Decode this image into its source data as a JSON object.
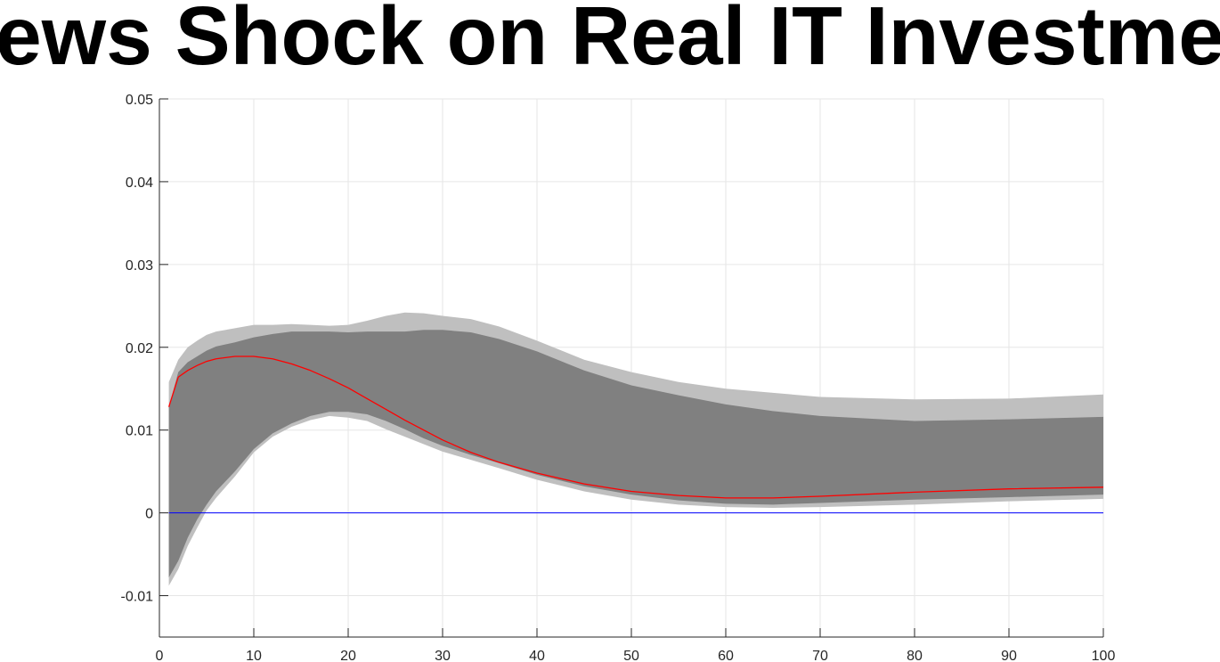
{
  "chart_data": {
    "type": "line",
    "title": "ews Shock on Real IT Investme",
    "xlabel": "",
    "ylabel": "",
    "xlim": [
      0,
      100
    ],
    "ylim": [
      -0.015,
      0.05
    ],
    "xticks": [
      0,
      10,
      20,
      30,
      40,
      50,
      60,
      70,
      80,
      90,
      100
    ],
    "xtick_labels": [
      "0",
      "10",
      "20",
      "30",
      "40",
      "50",
      "60",
      "70",
      "80",
      "90",
      "100"
    ],
    "yticks": [
      -0.01,
      0,
      0.01,
      0.02,
      0.03,
      0.04,
      0.05
    ],
    "ytick_labels": [
      "-0.01",
      "0",
      "0.01",
      "0.02",
      "0.03",
      "0.04",
      "0.05"
    ],
    "grid": true,
    "x": [
      1,
      2,
      3,
      4,
      5,
      6,
      8,
      10,
      12,
      14,
      16,
      18,
      20,
      22,
      24,
      26,
      28,
      30,
      33,
      36,
      40,
      45,
      50,
      55,
      60,
      65,
      70,
      80,
      90,
      100
    ],
    "series": [
      {
        "role": "outer_band",
        "color": "#bfbfbf",
        "upper": [
          0.0158,
          0.0185,
          0.02,
          0.0208,
          0.0215,
          0.0219,
          0.0223,
          0.0227,
          0.0227,
          0.0228,
          0.0227,
          0.0226,
          0.0227,
          0.0232,
          0.0238,
          0.0242,
          0.0241,
          0.0238,
          0.0234,
          0.0225,
          0.0208,
          0.0185,
          0.017,
          0.0158,
          0.015,
          0.0145,
          0.014,
          0.0137,
          0.0138,
          0.0143
        ],
        "lower": [
          -0.0088,
          -0.0068,
          -0.004,
          -0.0018,
          0.0003,
          0.0018,
          0.0044,
          0.0073,
          0.0092,
          0.0104,
          0.0112,
          0.0117,
          0.0115,
          0.0111,
          0.0101,
          0.0092,
          0.0083,
          0.0074,
          0.0064,
          0.0054,
          0.004,
          0.0026,
          0.0016,
          0.001,
          0.0007,
          0.0006,
          0.0007,
          0.001,
          0.0014,
          0.0017
        ]
      },
      {
        "role": "inner_band",
        "color": "#808080",
        "upper": [
          0.0128,
          0.017,
          0.0182,
          0.0189,
          0.0196,
          0.0201,
          0.0206,
          0.0212,
          0.0216,
          0.0219,
          0.0219,
          0.0219,
          0.0218,
          0.0219,
          0.0219,
          0.0219,
          0.0221,
          0.0221,
          0.0218,
          0.021,
          0.0195,
          0.0172,
          0.0154,
          0.0142,
          0.0131,
          0.0123,
          0.0117,
          0.0111,
          0.0113,
          0.0116
        ],
        "lower": [
          -0.0078,
          -0.0058,
          -0.003,
          -0.0008,
          0.001,
          0.0026,
          0.005,
          0.0077,
          0.0096,
          0.0108,
          0.0117,
          0.0122,
          0.0122,
          0.0119,
          0.0111,
          0.0101,
          0.009,
          0.0081,
          0.007,
          0.006,
          0.0046,
          0.0032,
          0.0022,
          0.0015,
          0.0011,
          0.001,
          0.0012,
          0.0016,
          0.0019,
          0.0022
        ]
      },
      {
        "role": "median",
        "color": "#ff0000",
        "values": [
          0.0128,
          0.0164,
          0.0172,
          0.0178,
          0.0183,
          0.0186,
          0.0189,
          0.0189,
          0.0186,
          0.018,
          0.0172,
          0.0162,
          0.0151,
          0.0138,
          0.0125,
          0.0112,
          0.01,
          0.0088,
          0.0073,
          0.0061,
          0.0048,
          0.0035,
          0.0026,
          0.0021,
          0.0018,
          0.0018,
          0.002,
          0.0025,
          0.0029,
          0.0031
        ]
      },
      {
        "role": "zero_line",
        "color": "#0000ff",
        "x_range": [
          1,
          100
        ],
        "value": 0
      }
    ]
  }
}
